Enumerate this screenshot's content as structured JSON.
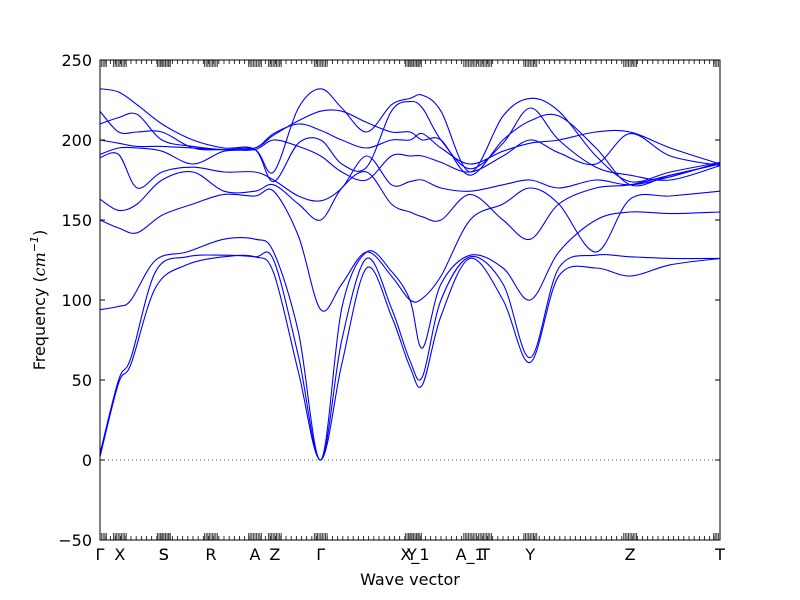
{
  "chart_data": {
    "type": "line",
    "title": "",
    "xlabel": "Wave vector",
    "ylabel": "Frequency (cm^-1)",
    "ylabel_main": "Frequency (",
    "ylabel_unit": "cm",
    "ylabel_exp": "−1",
    "ylabel_close": ")",
    "ylim": [
      -50,
      250
    ],
    "yticks": [
      -50,
      0,
      50,
      100,
      150,
      200,
      250
    ],
    "xlim": [
      0,
      1
    ],
    "grid": false,
    "line_color": "#0000ff",
    "zero_line_color": "#4040c0",
    "high_symmetry_points": [
      {
        "label": "Γ",
        "x": 0.0
      },
      {
        "label": "X",
        "x": 0.032
      },
      {
        "label": "S",
        "x": 0.103
      },
      {
        "label": "S",
        "x": 0.103
      },
      {
        "label": "R",
        "x": 0.179
      },
      {
        "label": "A",
        "x": 0.25
      },
      {
        "label": "Z",
        "x": 0.282
      },
      {
        "label": "Γ",
        "x": 0.356
      },
      {
        "label": "Y",
        "x": 0.503
      },
      {
        "label": "X_1",
        "x": 0.508
      },
      {
        "label": "A_1",
        "x": 0.597
      },
      {
        "label": "T",
        "x": 0.621
      },
      {
        "label": "Y",
        "x": 0.694
      },
      {
        "label": "Z",
        "x": 0.855
      },
      {
        "label": "T",
        "x": 1.0
      }
    ],
    "series": [
      {
        "x": [
          0,
          0.03,
          0.05,
          0.09,
          0.14,
          0.2,
          0.25,
          0.28,
          0.32,
          0.356,
          0.39,
          0.43,
          0.47,
          0.5,
          0.52,
          0.55,
          0.597,
          0.65,
          0.694,
          0.74,
          0.8,
          0.855,
          0.92,
          1.0
        ],
        "y": [
          2,
          48,
          60,
          108,
          122,
          127,
          127,
          117,
          55,
          0,
          60,
          120,
          90,
          58,
          47,
          90,
          126,
          100,
          61,
          115,
          120,
          115,
          122,
          126
        ]
      },
      {
        "x": [
          0,
          0.03,
          0.05,
          0.09,
          0.14,
          0.2,
          0.25,
          0.28,
          0.32,
          0.356,
          0.39,
          0.43,
          0.47,
          0.5,
          0.52,
          0.55,
          0.597,
          0.65,
          0.694,
          0.74,
          0.8,
          0.855,
          0.92,
          1.0
        ],
        "y": [
          4,
          50,
          64,
          118,
          127,
          128,
          127,
          125,
          65,
          0,
          75,
          126,
          95,
          62,
          52,
          100,
          127,
          110,
          64,
          120,
          128,
          127,
          126,
          126
        ]
      },
      {
        "x": [
          0,
          0.03,
          0.05,
          0.09,
          0.14,
          0.2,
          0.25,
          0.28,
          0.32,
          0.356,
          0.39,
          0.43,
          0.47,
          0.5,
          0.52,
          0.55,
          0.597,
          0.65,
          0.694,
          0.74,
          0.8,
          0.855,
          0.92,
          1.0
        ],
        "y": [
          94,
          96,
          100,
          125,
          130,
          138,
          138,
          130,
          80,
          0,
          95,
          130,
          118,
          100,
          70,
          110,
          128,
          120,
          100,
          130,
          150,
          155,
          154,
          155
        ]
      },
      {
        "x": [
          0,
          0.03,
          0.06,
          0.1,
          0.15,
          0.2,
          0.25,
          0.28,
          0.32,
          0.356,
          0.39,
          0.43,
          0.47,
          0.5,
          0.52,
          0.55,
          0.597,
          0.65,
          0.694,
          0.74,
          0.8,
          0.855,
          0.92,
          1.0
        ],
        "y": [
          150,
          145,
          142,
          153,
          160,
          166,
          165,
          168,
          140,
          94,
          110,
          130,
          115,
          100,
          101,
          115,
          150,
          160,
          170,
          160,
          130,
          163,
          165,
          168
        ]
      },
      {
        "x": [
          0,
          0.03,
          0.06,
          0.1,
          0.15,
          0.2,
          0.25,
          0.28,
          0.32,
          0.356,
          0.39,
          0.43,
          0.47,
          0.5,
          0.52,
          0.55,
          0.597,
          0.65,
          0.694,
          0.74,
          0.8,
          0.855,
          0.92,
          1.0
        ],
        "y": [
          163,
          156,
          160,
          175,
          180,
          168,
          168,
          172,
          160,
          150,
          170,
          180,
          160,
          155,
          152,
          150,
          166,
          150,
          138,
          160,
          170,
          172,
          178,
          185
        ]
      },
      {
        "x": [
          0,
          0.03,
          0.06,
          0.1,
          0.15,
          0.2,
          0.25,
          0.28,
          0.32,
          0.356,
          0.39,
          0.43,
          0.47,
          0.5,
          0.52,
          0.55,
          0.597,
          0.65,
          0.694,
          0.74,
          0.8,
          0.855,
          0.92,
          1.0
        ],
        "y": [
          189,
          191,
          170,
          180,
          183,
          180,
          180,
          175,
          165,
          162,
          170,
          190,
          172,
          174,
          175,
          170,
          168,
          172,
          175,
          170,
          175,
          172,
          177,
          186
        ]
      },
      {
        "x": [
          0,
          0.03,
          0.06,
          0.1,
          0.15,
          0.2,
          0.25,
          0.28,
          0.32,
          0.356,
          0.39,
          0.43,
          0.47,
          0.5,
          0.52,
          0.55,
          0.597,
          0.65,
          0.694,
          0.74,
          0.8,
          0.855,
          0.92,
          1.0
        ],
        "y": [
          191,
          195,
          195,
          193,
          185,
          193,
          194,
          200,
          196,
          190,
          180,
          175,
          190,
          190,
          190,
          186,
          180,
          190,
          200,
          192,
          185,
          204,
          190,
          184
        ]
      },
      {
        "x": [
          0,
          0.03,
          0.06,
          0.1,
          0.15,
          0.2,
          0.25,
          0.28,
          0.32,
          0.356,
          0.39,
          0.43,
          0.47,
          0.5,
          0.52,
          0.55,
          0.597,
          0.65,
          0.694,
          0.74,
          0.8,
          0.855,
          0.92,
          1.0
        ],
        "y": [
          200,
          198,
          196,
          196,
          195,
          194,
          195,
          204,
          210,
          206,
          200,
          195,
          200,
          200,
          204,
          195,
          185,
          193,
          198,
          200,
          205,
          205,
          195,
          185
        ]
      },
      {
        "x": [
          0,
          0.03,
          0.06,
          0.1,
          0.15,
          0.2,
          0.25,
          0.28,
          0.32,
          0.356,
          0.39,
          0.43,
          0.47,
          0.5,
          0.52,
          0.55,
          0.597,
          0.65,
          0.694,
          0.74,
          0.8,
          0.855,
          0.92,
          1.0
        ],
        "y": [
          218,
          205,
          205,
          205,
          195,
          194,
          195,
          203,
          212,
          218,
          218,
          211,
          205,
          205,
          200,
          200,
          178,
          200,
          212,
          215,
          195,
          172,
          178,
          185
        ]
      },
      {
        "x": [
          0,
          0.03,
          0.06,
          0.1,
          0.15,
          0.2,
          0.25,
          0.28,
          0.32,
          0.356,
          0.39,
          0.43,
          0.47,
          0.5,
          0.52,
          0.55,
          0.597,
          0.65,
          0.694,
          0.74,
          0.8,
          0.855,
          0.92,
          1.0
        ],
        "y": [
          210,
          214,
          216,
          200,
          196,
          194,
          194,
          180,
          220,
          232,
          220,
          205,
          222,
          226,
          228,
          218,
          180,
          215,
          226,
          218,
          190,
          174,
          180,
          186
        ]
      },
      {
        "x": [
          0,
          0.03,
          0.06,
          0.1,
          0.15,
          0.2,
          0.25,
          0.28,
          0.32,
          0.356,
          0.39,
          0.43,
          0.47,
          0.5,
          0.52,
          0.55,
          0.597,
          0.65,
          0.694,
          0.74,
          0.8,
          0.855,
          0.92,
          1.0
        ],
        "y": [
          232,
          230,
          222,
          210,
          200,
          195,
          194,
          174,
          198,
          200,
          185,
          183,
          218,
          224,
          220,
          200,
          182,
          198,
          220,
          200,
          183,
          178,
          175,
          184
        ]
      }
    ]
  }
}
